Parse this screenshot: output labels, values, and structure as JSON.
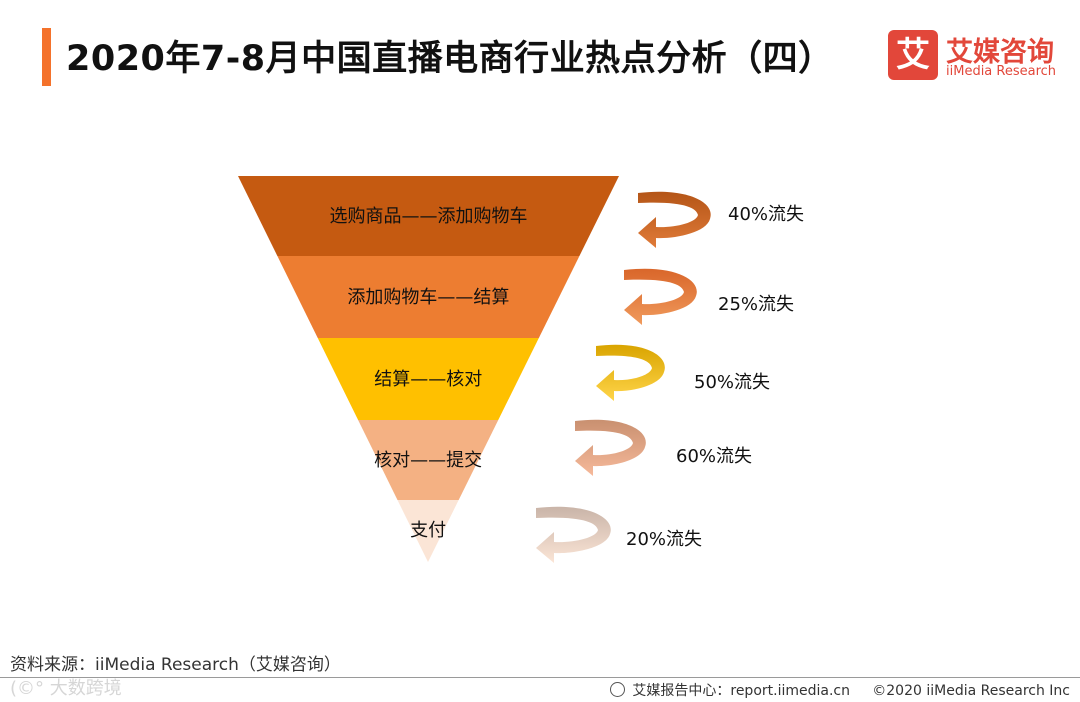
{
  "header": {
    "title": "2020年7-8月中国直播电商行业热点分析（四）",
    "accent_color": "#f4722b"
  },
  "logo": {
    "icon_char": "艾",
    "name_cn": "艾媒咨询",
    "name_en": "iiMedia Research",
    "color": "#e2473a"
  },
  "funnel": {
    "stages": [
      {
        "label": "选购商品——添加购物车",
        "color": "#c55a11",
        "loss_label": "40%流失",
        "loss_pct": 40
      },
      {
        "label": "添加购物车——结算",
        "color": "#ed7d31",
        "loss_label": "25%流失",
        "loss_pct": 25
      },
      {
        "label": "结算——核对",
        "color": "#ffc000",
        "loss_label": "50%流失",
        "loss_pct": 50
      },
      {
        "label": "核对——提交",
        "color": "#f4b183",
        "loss_label": "60%流失",
        "loss_pct": 60
      },
      {
        "label": "支付",
        "color": "#fbe5d6",
        "loss_label": "20%流失",
        "loss_pct": 20
      }
    ],
    "arrow_colors": [
      [
        "#b45517",
        "#e07b39"
      ],
      [
        "#d9662a",
        "#f09a5c"
      ],
      [
        "#d9a400",
        "#ffd54a"
      ],
      [
        "#c99070",
        "#f6b99a"
      ],
      [
        "#c9b4a8",
        "#fbe5d6"
      ]
    ]
  },
  "footer": {
    "source": "资料来源：iiMedia Research（艾媒咨询）",
    "watermark": "(©° 大数跨境",
    "report_site": "艾媒报告中心：report.iimedia.cn",
    "copyright": "©2020  iiMedia Research  Inc"
  }
}
